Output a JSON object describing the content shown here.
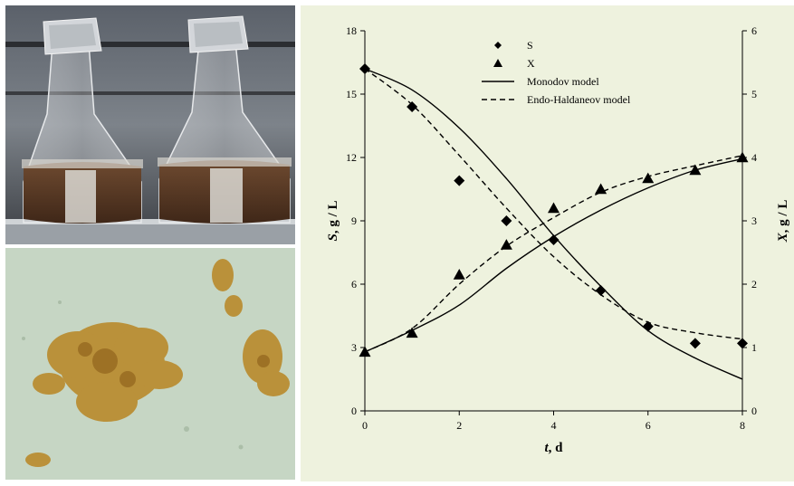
{
  "chart_data": {
    "type": "scatter",
    "title": "",
    "x_axis": {
      "label_italic": "t",
      "label_rest": ", d",
      "min": 0,
      "max": 8,
      "ticks": [
        "0",
        "2",
        "4",
        "6",
        "8"
      ]
    },
    "y_left": {
      "label_italic": "S",
      "label_rest": ", g / L",
      "min": 0,
      "max": 18,
      "ticks": [
        "0",
        "3",
        "6",
        "9",
        "12",
        "15",
        "18"
      ]
    },
    "y_right": {
      "label_italic": "X",
      "label_rest": ", g / L",
      "min": 0,
      "max": 6,
      "ticks": [
        "0",
        "1",
        "2",
        "3",
        "4",
        "5",
        "6"
      ]
    },
    "legend_placement": "top-center",
    "series": [
      {
        "name": "S",
        "kind": "points",
        "marker": "diamond",
        "axis": "left",
        "x": [
          0,
          1,
          2,
          3,
          4,
          5,
          6,
          7,
          8
        ],
        "y": [
          16.2,
          14.4,
          10.9,
          9.0,
          8.1,
          5.7,
          4.0,
          3.2,
          3.2
        ]
      },
      {
        "name": "X",
        "kind": "points",
        "marker": "triangle",
        "axis": "right",
        "x": [
          0,
          1,
          2,
          3,
          4,
          5,
          6,
          7,
          8
        ],
        "y": [
          0.93,
          1.23,
          2.15,
          2.62,
          3.2,
          3.5,
          3.67,
          3.8,
          4.0
        ]
      },
      {
        "name": "Monodov model",
        "kind": "line",
        "style": "solid",
        "curves": [
          {
            "axis": "left",
            "x": [
              0,
              1,
              2,
              3,
              4,
              5,
              6,
              7,
              8
            ],
            "y": [
              16.2,
              15.2,
              13.4,
              11.0,
              8.3,
              5.9,
              3.8,
              2.5,
              1.5
            ]
          },
          {
            "axis": "right",
            "x": [
              0,
              1,
              2,
              3,
              4,
              5,
              6,
              7,
              8
            ],
            "y": [
              0.93,
              1.27,
              1.67,
              2.25,
              2.75,
              3.17,
              3.52,
              3.8,
              3.98
            ]
          }
        ]
      },
      {
        "name": "Endo-Haldaneov model",
        "kind": "line",
        "style": "dashed",
        "curves": [
          {
            "axis": "left",
            "x": [
              0,
              1,
              2,
              3,
              4,
              5,
              6,
              7,
              8
            ],
            "y": [
              16.2,
              14.5,
              12.1,
              9.6,
              7.3,
              5.5,
              4.2,
              3.7,
              3.4
            ]
          },
          {
            "axis": "right",
            "x": [
              0,
              1,
              2,
              3,
              4,
              5,
              6,
              7,
              8
            ],
            "y": [
              0.93,
              1.3,
              2.0,
              2.6,
              3.05,
              3.45,
              3.7,
              3.87,
              4.03
            ]
          }
        ]
      }
    ]
  },
  "photos": {
    "flask_photo_icon": "erlenmeyer-flasks-photo",
    "micrograph_icon": "microscope-floc-photo"
  },
  "colors": {
    "chart_background": "#eef2de",
    "micrograph_background": "#c6d6c4",
    "floc_color": "#b98a2c",
    "broth_color": "#5b3a25"
  }
}
